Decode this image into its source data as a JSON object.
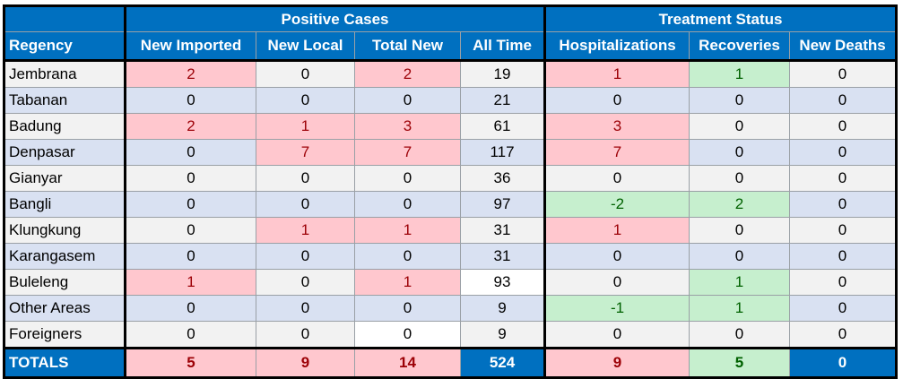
{
  "headers": {
    "group_positive": "Positive Cases",
    "group_treatment": "Treatment Status",
    "columns": [
      "Regency",
      "New Imported",
      "New Local",
      "Total New",
      "All Time",
      "Hospitalizations",
      "Recoveries",
      "New Deaths"
    ]
  },
  "rows": [
    {
      "regency": "Jembrana",
      "values": [
        "2",
        "0",
        "2",
        "19",
        "1",
        "1",
        "0"
      ]
    },
    {
      "regency": "Tabanan",
      "values": [
        "0",
        "0",
        "0",
        "21",
        "0",
        "0",
        "0"
      ]
    },
    {
      "regency": "Badung",
      "values": [
        "2",
        "1",
        "3",
        "61",
        "3",
        "0",
        "0"
      ]
    },
    {
      "regency": "Denpasar",
      "values": [
        "0",
        "7",
        "7",
        "117",
        "7",
        "0",
        "0"
      ]
    },
    {
      "regency": "Gianyar",
      "values": [
        "0",
        "0",
        "0",
        "36",
        "0",
        "0",
        "0"
      ]
    },
    {
      "regency": "Bangli",
      "values": [
        "0",
        "0",
        "0",
        "97",
        "-2",
        "2",
        "0"
      ]
    },
    {
      "regency": "Klungkung",
      "values": [
        "0",
        "1",
        "1",
        "31",
        "1",
        "0",
        "0"
      ]
    },
    {
      "regency": "Karangasem",
      "values": [
        "0",
        "0",
        "0",
        "31",
        "0",
        "0",
        "0"
      ]
    },
    {
      "regency": "Buleleng",
      "values": [
        "1",
        "0",
        "1",
        "93",
        "0",
        "1",
        "0"
      ]
    },
    {
      "regency": "Other Areas",
      "values": [
        "0",
        "0",
        "0",
        "9",
        "-1",
        "1",
        "0"
      ]
    },
    {
      "regency": "Foreigners",
      "values": [
        "0",
        "0",
        "0",
        "9",
        "0",
        "0",
        "0"
      ]
    }
  ],
  "totals": {
    "label": "TOTALS",
    "values": [
      "5",
      "9",
      "14",
      "524",
      "9",
      "5",
      "0"
    ]
  },
  "colors": {
    "header_blue": "#0070c0",
    "positive_fill": "#ffc7ce",
    "positive_text": "#9c0006",
    "negative_fill": "#c6efce",
    "negative_text": "#006100",
    "band_light": "#f2f2f2",
    "band_blue": "#d9e1f2"
  }
}
